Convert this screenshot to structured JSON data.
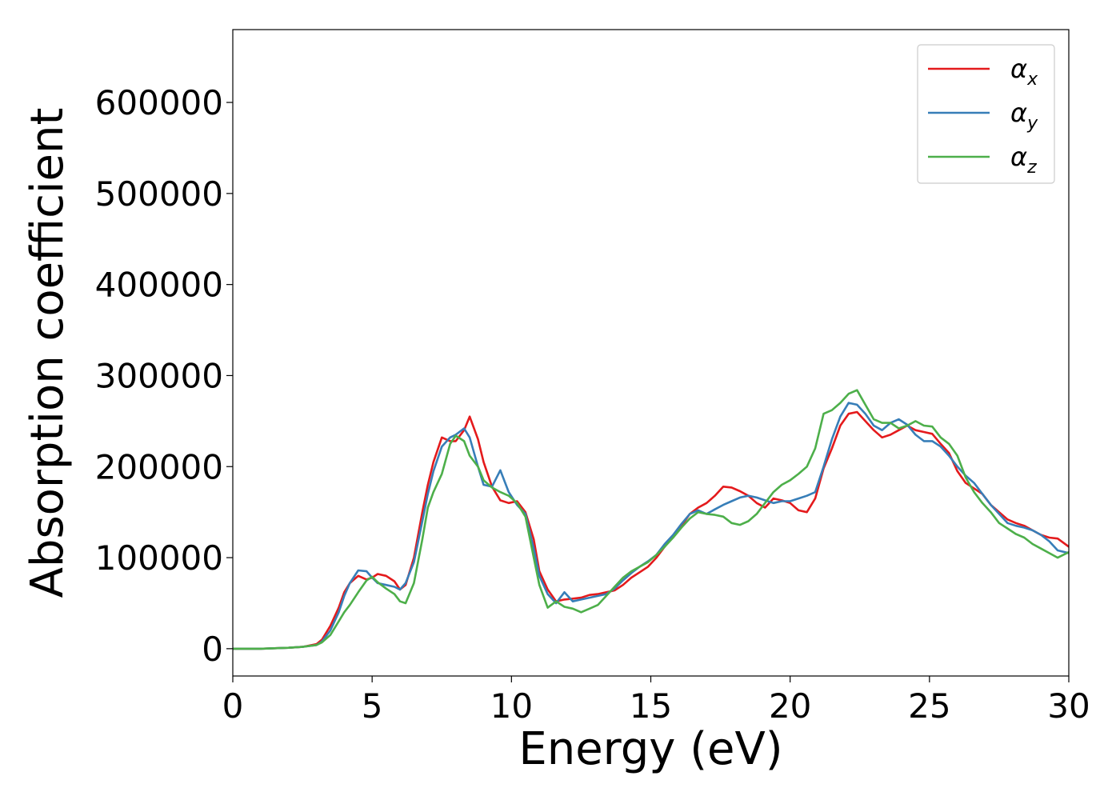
{
  "chart_data": {
    "type": "line",
    "title": "",
    "xlabel": "Energy (eV)",
    "ylabel": "Absorption coefficient",
    "xlim": [
      0,
      30
    ],
    "ylim": [
      -30000,
      680000
    ],
    "xticks": [
      0,
      5,
      10,
      15,
      20,
      25,
      30
    ],
    "yticks": [
      0,
      100000,
      200000,
      300000,
      400000,
      500000,
      600000
    ],
    "grid": false,
    "legend_position": "top-right",
    "series": [
      {
        "name": "αx",
        "label_main": "α",
        "label_sub": "x",
        "color": "#e41a1c",
        "x": [
          0,
          1,
          2,
          2.5,
          3,
          3.2,
          3.5,
          3.8,
          4.0,
          4.2,
          4.5,
          4.8,
          5.0,
          5.2,
          5.5,
          5.8,
          6.0,
          6.2,
          6.5,
          6.8,
          7.0,
          7.2,
          7.5,
          7.8,
          8.0,
          8.3,
          8.5,
          8.8,
          9.0,
          9.3,
          9.6,
          9.9,
          10.2,
          10.5,
          10.8,
          11.0,
          11.3,
          11.6,
          11.9,
          12.2,
          12.5,
          12.8,
          13.1,
          13.4,
          13.7,
          14.0,
          14.3,
          14.6,
          14.9,
          15.2,
          15.5,
          15.8,
          16.1,
          16.4,
          16.7,
          17.0,
          17.3,
          17.6,
          17.9,
          18.2,
          18.5,
          18.8,
          19.1,
          19.4,
          19.7,
          20.0,
          20.3,
          20.6,
          20.9,
          21.2,
          21.5,
          21.8,
          22.1,
          22.4,
          22.7,
          23.0,
          23.3,
          23.6,
          23.9,
          24.2,
          24.5,
          24.8,
          25.1,
          25.4,
          25.7,
          26.0,
          26.3,
          26.6,
          26.9,
          27.2,
          27.5,
          27.8,
          28.1,
          28.4,
          28.7,
          29.0,
          29.3,
          29.6,
          30.0
        ],
        "y": [
          0,
          0,
          1000,
          2000,
          5000,
          10000,
          25000,
          45000,
          62000,
          72000,
          80000,
          76000,
          78000,
          82000,
          80000,
          74000,
          65000,
          70000,
          100000,
          150000,
          180000,
          205000,
          232000,
          228000,
          228000,
          240000,
          255000,
          230000,
          205000,
          178000,
          163000,
          160000,
          162000,
          150000,
          120000,
          85000,
          65000,
          52000,
          54000,
          55000,
          56000,
          59000,
          60000,
          62000,
          64000,
          70000,
          78000,
          84000,
          90000,
          100000,
          112000,
          124000,
          135000,
          148000,
          155000,
          160000,
          168000,
          178000,
          177000,
          173000,
          168000,
          160000,
          155000,
          165000,
          163000,
          160000,
          152000,
          150000,
          165000,
          198000,
          220000,
          245000,
          258000,
          260000,
          250000,
          240000,
          232000,
          235000,
          240000,
          245000,
          240000,
          238000,
          236000,
          225000,
          215000,
          195000,
          182000,
          176000,
          170000,
          158000,
          150000,
          142000,
          138000,
          135000,
          130000,
          125000,
          122000,
          121000,
          112000
        ]
      },
      {
        "name": "αy",
        "label_main": "α",
        "label_sub": "y",
        "color": "#377eb8",
        "x": [
          0,
          1,
          2,
          2.5,
          3,
          3.2,
          3.5,
          3.8,
          4.0,
          4.2,
          4.5,
          4.8,
          5.0,
          5.2,
          5.5,
          5.8,
          6.0,
          6.2,
          6.5,
          6.8,
          7.0,
          7.2,
          7.5,
          7.8,
          8.0,
          8.3,
          8.5,
          8.8,
          9.0,
          9.3,
          9.6,
          9.9,
          10.2,
          10.5,
          10.8,
          11.0,
          11.3,
          11.6,
          11.9,
          12.2,
          12.5,
          12.8,
          13.1,
          13.4,
          13.7,
          14.0,
          14.3,
          14.6,
          14.9,
          15.2,
          15.5,
          15.8,
          16.1,
          16.4,
          16.7,
          17.0,
          17.3,
          17.6,
          17.9,
          18.2,
          18.5,
          18.8,
          19.1,
          19.4,
          19.7,
          20.0,
          20.3,
          20.6,
          20.9,
          21.2,
          21.5,
          21.8,
          22.1,
          22.4,
          22.7,
          23.0,
          23.3,
          23.6,
          23.9,
          24.2,
          24.5,
          24.8,
          25.1,
          25.4,
          25.7,
          26.0,
          26.3,
          26.6,
          26.9,
          27.2,
          27.5,
          27.8,
          28.1,
          28.4,
          28.7,
          29.0,
          29.3,
          29.6,
          30.0
        ],
        "y": [
          0,
          0,
          1000,
          2000,
          4000,
          8000,
          20000,
          40000,
          58000,
          72000,
          86000,
          85000,
          78000,
          72000,
          70000,
          68000,
          65000,
          72000,
          95000,
          140000,
          170000,
          195000,
          222000,
          232000,
          235000,
          242000,
          232000,
          200000,
          180000,
          178000,
          196000,
          172000,
          158000,
          148000,
          110000,
          80000,
          60000,
          50000,
          62000,
          52000,
          54000,
          56000,
          58000,
          60000,
          66000,
          75000,
          83000,
          90000,
          96000,
          103000,
          115000,
          125000,
          137000,
          148000,
          152000,
          148000,
          153000,
          158000,
          162000,
          166000,
          168000,
          166000,
          163000,
          160000,
          162000,
          162000,
          165000,
          168000,
          172000,
          200000,
          230000,
          255000,
          270000,
          268000,
          258000,
          245000,
          240000,
          248000,
          252000,
          246000,
          235000,
          228000,
          228000,
          222000,
          212000,
          200000,
          190000,
          182000,
          170000,
          158000,
          148000,
          138000,
          135000,
          133000,
          130000,
          125000,
          118000,
          108000,
          105000
        ]
      },
      {
        "name": "αz",
        "label_main": "α",
        "label_sub": "z",
        "color": "#4daf4a",
        "x": [
          0,
          1,
          2,
          2.5,
          3,
          3.2,
          3.5,
          3.8,
          4.0,
          4.2,
          4.5,
          4.8,
          5.0,
          5.2,
          5.5,
          5.8,
          6.0,
          6.2,
          6.5,
          6.8,
          7.0,
          7.2,
          7.5,
          7.8,
          8.0,
          8.3,
          8.5,
          8.8,
          9.0,
          9.3,
          9.6,
          9.9,
          10.2,
          10.5,
          10.8,
          11.0,
          11.3,
          11.6,
          11.9,
          12.2,
          12.5,
          12.8,
          13.1,
          13.4,
          13.7,
          14.0,
          14.3,
          14.6,
          14.9,
          15.2,
          15.5,
          15.8,
          16.1,
          16.4,
          16.7,
          17.0,
          17.3,
          17.6,
          17.9,
          18.2,
          18.5,
          18.8,
          19.1,
          19.4,
          19.7,
          20.0,
          20.3,
          20.6,
          20.9,
          21.2,
          21.5,
          21.8,
          22.1,
          22.4,
          22.7,
          23.0,
          23.3,
          23.6,
          23.9,
          24.2,
          24.5,
          24.8,
          25.1,
          25.4,
          25.7,
          26.0,
          26.3,
          26.6,
          26.9,
          27.2,
          27.5,
          27.8,
          28.1,
          28.4,
          28.7,
          29.0,
          29.3,
          29.6,
          30.0
        ],
        "y": [
          0,
          0,
          1000,
          2000,
          4000,
          7000,
          15000,
          30000,
          40000,
          48000,
          62000,
          75000,
          79000,
          73000,
          66000,
          60000,
          52000,
          50000,
          72000,
          120000,
          155000,
          172000,
          192000,
          225000,
          234000,
          228000,
          212000,
          200000,
          185000,
          177000,
          172000,
          168000,
          160000,
          145000,
          100000,
          70000,
          45000,
          52000,
          46000,
          44000,
          40000,
          44000,
          48000,
          58000,
          68000,
          78000,
          85000,
          90000,
          95000,
          103000,
          112000,
          122000,
          133000,
          143000,
          150000,
          148000,
          147000,
          145000,
          138000,
          136000,
          140000,
          148000,
          160000,
          172000,
          180000,
          185000,
          192000,
          200000,
          220000,
          258000,
          262000,
          270000,
          280000,
          284000,
          268000,
          252000,
          248000,
          248000,
          242000,
          245000,
          250000,
          245000,
          244000,
          232000,
          225000,
          212000,
          188000,
          172000,
          160000,
          150000,
          138000,
          132000,
          126000,
          122000,
          115000,
          110000,
          105000,
          100000,
          106000
        ]
      }
    ]
  }
}
